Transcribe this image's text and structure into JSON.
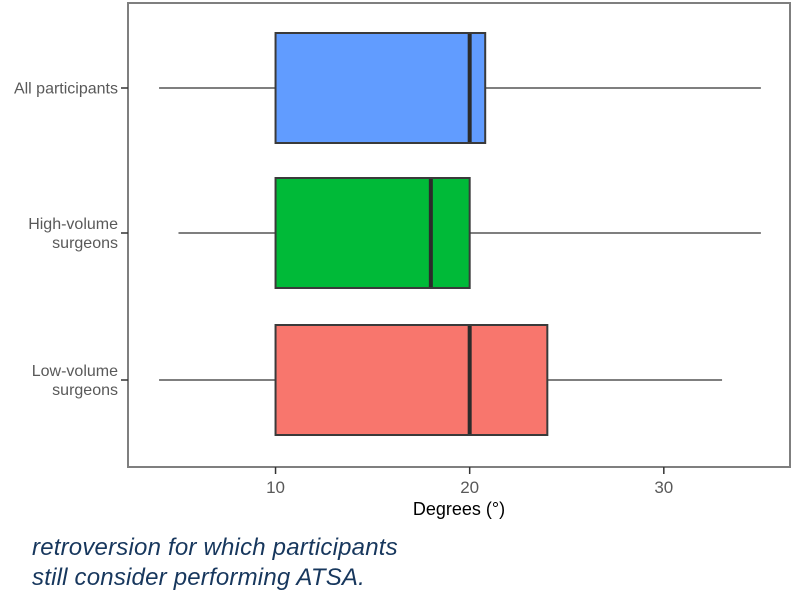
{
  "chart_data": {
    "type": "boxplot",
    "orientation": "horizontal",
    "title": "",
    "xlabel": "Degrees (°)",
    "ylabel": "",
    "x_ticks": [
      10,
      20,
      30
    ],
    "x_domain": [
      2.4,
      36.5
    ],
    "grid": false,
    "legend": false,
    "series": [
      {
        "label": "All participants",
        "label_lines": [
          "All participants"
        ],
        "color": "#619CFF",
        "min": 4,
        "q1": 10,
        "median": 20,
        "q3": 20.8,
        "max": 35
      },
      {
        "label": "High-volume surgeons",
        "label_lines": [
          "High-volume",
          "surgeons"
        ],
        "color": "#00BA38",
        "min": 5,
        "q1": 10,
        "median": 18,
        "q3": 20,
        "max": 35
      },
      {
        "label": "Low-volume surgeons",
        "label_lines": [
          "Low-volume",
          "surgeons"
        ],
        "color": "#F8766D",
        "min": 4,
        "q1": 10,
        "median": 20,
        "q3": 24,
        "max": 33
      }
    ]
  },
  "caption": {
    "lines": [
      "retroversion for which participants",
      "still consider performing ATSA."
    ],
    "color": "#17375D"
  },
  "colors": {
    "background": "#FFFFFF",
    "panel_border": "#7F7F7F",
    "box_stroke": "#3A3A3A",
    "median_stroke": "#2B2B2B",
    "whisker": "#555555",
    "tick_mark": "#333333",
    "axis_text": "#595959",
    "axis_title": "#000000"
  }
}
